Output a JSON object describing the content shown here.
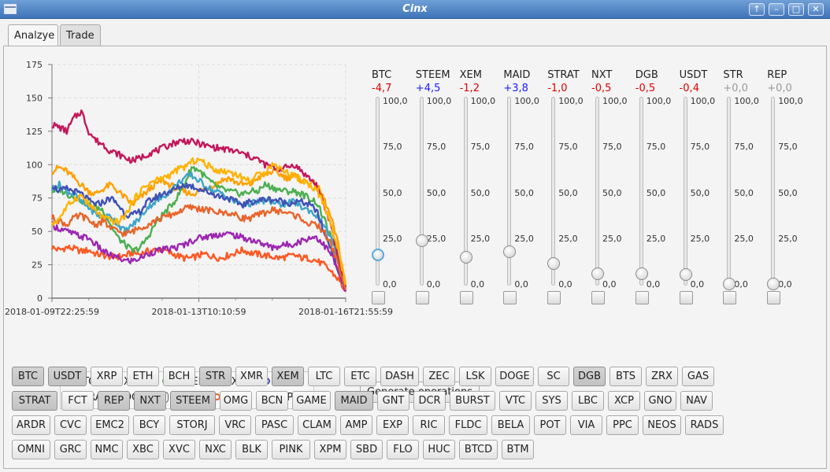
{
  "window": {
    "title": "Cinx",
    "controls": [
      "↑",
      "–",
      "□",
      "✕"
    ]
  },
  "tabs": [
    {
      "label": "Analzye",
      "active": true
    },
    {
      "label": "Trade",
      "active": false
    }
  ],
  "chart_data": {
    "type": "line",
    "title": "",
    "xlabel": "",
    "ylabel": "",
    "ylim": [
      0,
      175
    ],
    "yticks": [
      "0",
      "25",
      "50",
      "75",
      "100",
      "125",
      "150",
      "175"
    ],
    "xticks": [
      "2018-01-09T22:25:59",
      "2018-01-13T10:10:59",
      "2018-01-16T21:55:59"
    ],
    "grid": true,
    "legend_position": "bottom",
    "series": [
      {
        "name": "BTC",
        "color": "#ff5722",
        "values": [
          38,
          36,
          38,
          37,
          35,
          36,
          33,
          32,
          31,
          31,
          32,
          34,
          33,
          35,
          36,
          37,
          34,
          32,
          30,
          30,
          32,
          33,
          31,
          30,
          32,
          34,
          36,
          34,
          33,
          32,
          31,
          30,
          31,
          32,
          30,
          30,
          28,
          25,
          20,
          14,
          5
        ]
      },
      {
        "name": "XEM",
        "color": "#ffa000",
        "values": [
          95,
          98,
          95,
          90,
          85,
          80,
          78,
          82,
          85,
          80,
          75,
          70,
          75,
          80,
          85,
          88,
          85,
          82,
          80,
          78,
          80,
          82,
          85,
          88,
          90,
          87,
          85,
          85,
          90,
          92,
          95,
          93,
          90,
          92,
          88,
          87,
          85,
          75,
          60,
          40,
          10
        ]
      },
      {
        "name": "STEEM",
        "color": "#4caf50",
        "values": [
          80,
          82,
          78,
          76,
          73,
          70,
          68,
          66,
          55,
          45,
          40,
          35,
          38,
          45,
          55,
          62,
          68,
          75,
          85,
          98,
          96,
          90,
          85,
          82,
          80,
          79,
          78,
          80,
          80,
          85,
          83,
          81,
          80,
          80,
          78,
          75,
          72,
          60,
          45,
          30,
          8
        ]
      },
      {
        "name": "NXT",
        "color": "#3fa4c8",
        "values": [
          82,
          85,
          80,
          78,
          72,
          68,
          63,
          60,
          62,
          55,
          50,
          55,
          60,
          68,
          72,
          75,
          80,
          85,
          90,
          92,
          88,
          84,
          80,
          79,
          75,
          72,
          70,
          71,
          72,
          73,
          72,
          70,
          71,
          72,
          68,
          66,
          62,
          55,
          45,
          28,
          8
        ]
      },
      {
        "name": "MAID",
        "color": "#3f51b5",
        "values": [
          85,
          80,
          82,
          80,
          78,
          73,
          70,
          72,
          75,
          70,
          63,
          62,
          65,
          72,
          75,
          78,
          80,
          82,
          85,
          84,
          82,
          80,
          78,
          76,
          75,
          72,
          70,
          72,
          73,
          74,
          74,
          73,
          71,
          72,
          72,
          70,
          66,
          50,
          38,
          20,
          5
        ]
      },
      {
        "name": "STRAT",
        "color": "#9c27b0",
        "values": [
          55,
          52,
          50,
          48,
          46,
          45,
          40,
          35,
          32,
          30,
          28,
          28,
          30,
          33,
          35,
          36,
          37,
          38,
          40,
          43,
          45,
          46,
          47,
          48,
          48,
          47,
          45,
          44,
          42,
          40,
          38,
          39,
          40,
          41,
          43,
          45,
          46,
          40,
          33,
          20,
          5
        ]
      },
      {
        "name": "DGB",
        "color": "#c2185b",
        "values": [
          130,
          128,
          125,
          135,
          140,
          125,
          118,
          115,
          110,
          108,
          105,
          103,
          105,
          108,
          110,
          112,
          115,
          117,
          118,
          117,
          116,
          114,
          113,
          112,
          111,
          110,
          108,
          106,
          104,
          100,
          98,
          97,
          98,
          100,
          95,
          90,
          85,
          70,
          55,
          30,
          8
        ]
      },
      {
        "name": "STR",
        "color": "#e8642a",
        "values": [
          60,
          58,
          55,
          60,
          62,
          58,
          55,
          58,
          52,
          50,
          48,
          50,
          53,
          55,
          58,
          60,
          62,
          64,
          67,
          68,
          67,
          66,
          65,
          64,
          64,
          62,
          60,
          60,
          62,
          64,
          66,
          65,
          64,
          62,
          60,
          55,
          55,
          50,
          40,
          25,
          6
        ]
      },
      {
        "name": "REP",
        "color": "#ffb300",
        "values": [
          55,
          60,
          68,
          74,
          77,
          70,
          65,
          60,
          58,
          57,
          62,
          72,
          80,
          85,
          88,
          90,
          92,
          96,
          98,
          102,
          104,
          100,
          97,
          95,
          95,
          93,
          90,
          88,
          92,
          95,
          100,
          98,
          94,
          92,
          88,
          85,
          82,
          70,
          55,
          35,
          10
        ]
      }
    ]
  },
  "legend": {
    "items": [
      {
        "name": "BTC",
        "color": "#ff5722"
      },
      {
        "name": "XEM",
        "color": "#ffa000"
      },
      {
        "name": "STEEM",
        "color": "#4caf50"
      },
      {
        "name": "NXT",
        "color": "#3fa4c8"
      },
      {
        "name": "MAID",
        "color": "#3f51b5"
      },
      {
        "name": "STRAT",
        "color": "#9c27b0"
      },
      {
        "name": "DGB",
        "color": "#c2185b"
      },
      {
        "name": "",
        "color": "#666666",
        "icon": "ring-icon"
      },
      {
        "name": "STR",
        "color": "#e8642a"
      },
      {
        "name": "REP",
        "color": "#ffb300"
      }
    ]
  },
  "sliders": {
    "ticks": [
      "100,0",
      "75,0",
      "50,0",
      "25,0",
      "0,0"
    ],
    "items": [
      {
        "name": "BTC",
        "change": "-4,7",
        "change_color": "#e00000",
        "value": 15.8,
        "focused": true
      },
      {
        "name": "STEEM",
        "change": "+4,5",
        "change_color": "#1a1aff",
        "value": 23.5,
        "focused": false
      },
      {
        "name": "XEM",
        "change": "-1,2",
        "change_color": "#e00000",
        "value": 14.5,
        "focused": false
      },
      {
        "name": "MAID",
        "change": "+3,8",
        "change_color": "#1a1aff",
        "value": 17.5,
        "focused": false
      },
      {
        "name": "STRAT",
        "change": "-1,0",
        "change_color": "#e00000",
        "value": 11.0,
        "focused": false
      },
      {
        "name": "NXT",
        "change": "-0,5",
        "change_color": "#e00000",
        "value": 5.8,
        "focused": false
      },
      {
        "name": "DGB",
        "change": "-0,5",
        "change_color": "#e00000",
        "value": 5.5,
        "focused": false
      },
      {
        "name": "USDT",
        "change": "-0,4",
        "change_color": "#e00000",
        "value": 5.0,
        "focused": false
      },
      {
        "name": "STR",
        "change": "+0,0",
        "change_color": "#999999",
        "value": 0.0,
        "focused": false
      },
      {
        "name": "REP",
        "change": "+0,0",
        "change_color": "#999999",
        "value": 0.0,
        "focused": false
      }
    ]
  },
  "generate_button": {
    "label": "Generate operations"
  },
  "coin_rows": [
    [
      {
        "label": "BTC",
        "sel": true
      },
      {
        "label": "USDT",
        "sel": true
      },
      {
        "label": "XRP",
        "sel": false
      },
      {
        "label": "ETH",
        "sel": false
      },
      {
        "label": "BCH",
        "sel": false
      },
      {
        "label": "STR",
        "sel": true
      },
      {
        "label": "XMR",
        "sel": false
      },
      {
        "label": "XEM",
        "sel": true
      },
      {
        "label": "LTC",
        "sel": false
      },
      {
        "label": "ETC",
        "sel": false
      },
      {
        "label": "DASH",
        "sel": false
      },
      {
        "label": "ZEC",
        "sel": false
      },
      {
        "label": "LSK",
        "sel": false
      },
      {
        "label": "DOGE",
        "sel": false
      },
      {
        "label": "SC",
        "sel": false
      },
      {
        "label": "DGB",
        "sel": true
      },
      {
        "label": "BTS",
        "sel": false
      },
      {
        "label": "ZRX",
        "sel": false
      },
      {
        "label": "GAS",
        "sel": false
      }
    ],
    [
      {
        "label": "STRAT",
        "sel": true
      },
      {
        "label": "FCT",
        "sel": false
      },
      {
        "label": "REP",
        "sel": true
      },
      {
        "label": "NXT",
        "sel": true
      },
      {
        "label": "STEEM",
        "sel": true
      },
      {
        "label": "OMG",
        "sel": false
      },
      {
        "label": "BCN",
        "sel": false
      },
      {
        "label": "GAME",
        "sel": false
      },
      {
        "label": "MAID",
        "sel": true
      },
      {
        "label": "GNT",
        "sel": false
      },
      {
        "label": "DCR",
        "sel": false
      },
      {
        "label": "BURST",
        "sel": false
      },
      {
        "label": "VTC",
        "sel": false
      },
      {
        "label": "SYS",
        "sel": false
      },
      {
        "label": "LBC",
        "sel": false
      },
      {
        "label": "XCP",
        "sel": false
      },
      {
        "label": "GNO",
        "sel": false
      },
      {
        "label": "NAV",
        "sel": false
      }
    ],
    [
      {
        "label": "ARDR",
        "sel": false
      },
      {
        "label": "CVC",
        "sel": false
      },
      {
        "label": "EMC2",
        "sel": false
      },
      {
        "label": "BCY",
        "sel": false
      },
      {
        "label": "STORJ",
        "sel": false
      },
      {
        "label": "VRC",
        "sel": false
      },
      {
        "label": "PASC",
        "sel": false
      },
      {
        "label": "CLAM",
        "sel": false
      },
      {
        "label": "AMP",
        "sel": false
      },
      {
        "label": "EXP",
        "sel": false
      },
      {
        "label": "RIC",
        "sel": false
      },
      {
        "label": "FLDC",
        "sel": false
      },
      {
        "label": "BELA",
        "sel": false
      },
      {
        "label": "POT",
        "sel": false
      },
      {
        "label": "VIA",
        "sel": false
      },
      {
        "label": "PPC",
        "sel": false
      },
      {
        "label": "NEOS",
        "sel": false
      },
      {
        "label": "RADS",
        "sel": false
      }
    ],
    [
      {
        "label": "OMNI",
        "sel": false
      },
      {
        "label": "GRC",
        "sel": false
      },
      {
        "label": "NMC",
        "sel": false
      },
      {
        "label": "XBC",
        "sel": false
      },
      {
        "label": "XVC",
        "sel": false
      },
      {
        "label": "NXC",
        "sel": false
      },
      {
        "label": "BLK",
        "sel": false
      },
      {
        "label": "PINK",
        "sel": false
      },
      {
        "label": "XPM",
        "sel": false
      },
      {
        "label": "SBD",
        "sel": false
      },
      {
        "label": "FLO",
        "sel": false
      },
      {
        "label": "HUC",
        "sel": false
      },
      {
        "label": "BTCD",
        "sel": false
      },
      {
        "label": "BTM",
        "sel": false
      }
    ]
  ]
}
